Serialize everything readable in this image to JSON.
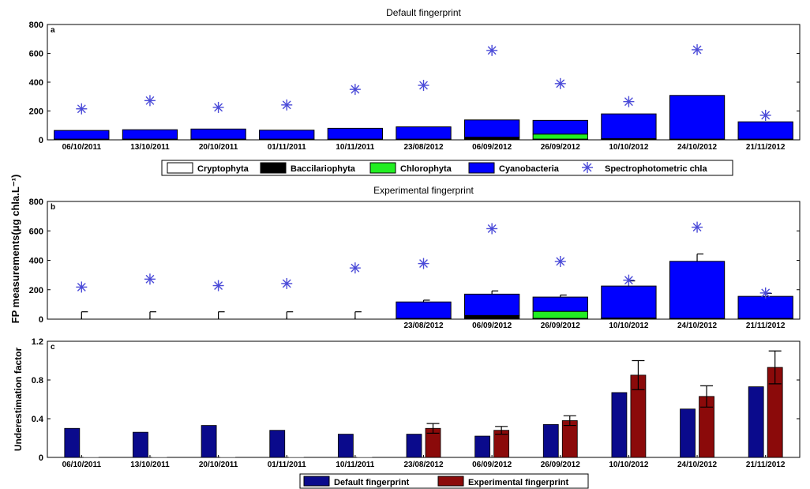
{
  "figure": {
    "shared_ylabel": "FP measurements(μg chla.L⁻¹)"
  },
  "chart_data": [
    {
      "type": "bar",
      "panel": "a",
      "title": "Default fingerprint",
      "xlabel": "",
      "ylabel": "",
      "ylim": [
        0,
        800
      ],
      "yticks": [
        "0",
        "200",
        "400",
        "600",
        "800"
      ],
      "grid": false,
      "stacked": true,
      "categories": [
        "06/10/2011",
        "13/10/2011",
        "20/10/2011",
        "01/11/2011",
        "10/11/2011",
        "23/08/2012",
        "06/09/2012",
        "26/09/2012",
        "10/10/2012",
        "24/10/2012",
        "21/11/2012"
      ],
      "series": [
        {
          "name": "Cryptophyta",
          "color": "#ffffff",
          "values": [
            0,
            0,
            0,
            0,
            0,
            0,
            0,
            0,
            0,
            0,
            0
          ]
        },
        {
          "name": "Baccilariophyta",
          "color": "#000000",
          "values": [
            5,
            5,
            5,
            5,
            5,
            5,
            18,
            5,
            8,
            5,
            5
          ]
        },
        {
          "name": "Chlorophyta",
          "color": "#22ee22",
          "values": [
            0,
            0,
            0,
            0,
            0,
            0,
            0,
            35,
            0,
            0,
            0
          ]
        },
        {
          "name": "Cyanobacteria",
          "color": "#0000ff",
          "values": [
            60,
            65,
            70,
            62,
            75,
            85,
            120,
            95,
            172,
            303,
            120
          ]
        }
      ],
      "markers": {
        "name": "Spectrophotometric chla",
        "symbol": "*",
        "color": "#4b4bd8",
        "values": [
          215,
          272,
          225,
          242,
          350,
          378,
          620,
          390,
          265,
          625,
          170
        ]
      },
      "legend": {
        "placement": "bottom",
        "entries": [
          "Cryptophyta",
          "Baccilariophyta",
          "Chlorophyta",
          "Cyanobacteria",
          "Spectrophotometric chla"
        ]
      }
    },
    {
      "type": "bar",
      "panel": "b",
      "title": "Experimental fingerprint",
      "xlabel": "",
      "ylabel": "",
      "ylim": [
        0,
        800
      ],
      "yticks": [
        "0",
        "200",
        "400",
        "600",
        "800"
      ],
      "grid": false,
      "stacked": true,
      "categories": [
        "",
        "",
        "",
        "",
        "",
        "23/08/2012",
        "06/09/2012",
        "26/09/2012",
        "10/10/2012",
        "24/10/2012",
        "21/11/2012"
      ],
      "series": [
        {
          "name": "Cryptophyta",
          "color": "#ffffff",
          "values": [
            0,
            0,
            0,
            0,
            0,
            0,
            0,
            0,
            0,
            0,
            0
          ]
        },
        {
          "name": "Baccilariophyta",
          "color": "#000000",
          "values": [
            0,
            0,
            0,
            0,
            0,
            5,
            25,
            5,
            8,
            5,
            5
          ]
        },
        {
          "name": "Chlorophyta",
          "color": "#22ee22",
          "values": [
            0,
            0,
            0,
            0,
            0,
            0,
            0,
            48,
            0,
            0,
            0
          ]
        },
        {
          "name": "Cyanobacteria",
          "color": "#0000ff",
          "values": [
            0,
            0,
            0,
            0,
            0,
            112,
            145,
            97,
            217,
            388,
            150
          ]
        }
      ],
      "error_bars": [
        50,
        50,
        50,
        50,
        50,
        12,
        22,
        14,
        35,
        50,
        20
      ],
      "markers": {
        "name": "Spectrophotometric chla",
        "symbol": "*",
        "color": "#4b4bd8",
        "values": [
          218,
          272,
          228,
          242,
          348,
          378,
          615,
          392,
          265,
          625,
          178
        ]
      }
    },
    {
      "type": "bar",
      "panel": "c",
      "title": "",
      "xlabel": "",
      "ylabel": "Underestimation factor",
      "ylim": [
        0,
        1.2
      ],
      "yticks": [
        "0",
        "0.4",
        "0.8",
        "1.2"
      ],
      "grid": false,
      "stacked": false,
      "categories": [
        "06/10/2011",
        "13/10/2011",
        "20/10/2011",
        "01/11/2011",
        "10/11/2011",
        "23/08/2012",
        "06/09/2012",
        "26/09/2012",
        "10/10/2012",
        "24/10/2012",
        "21/11/2012"
      ],
      "series": [
        {
          "name": "Default fingerprint",
          "color": "#0a0a8c",
          "values": [
            0.3,
            0.26,
            0.33,
            0.28,
            0.24,
            0.24,
            0.22,
            0.34,
            0.67,
            0.5,
            0.73
          ]
        },
        {
          "name": "Experimental fingerprint",
          "color": "#8b0a0a",
          "values": [
            0,
            0,
            0,
            0,
            0,
            0.3,
            0.28,
            0.38,
            0.85,
            0.63,
            0.93
          ]
        }
      ],
      "error_bars": [
        0,
        0,
        0,
        0,
        0,
        0.05,
        0.04,
        0.05,
        0.15,
        0.11,
        0.17
      ],
      "legend": {
        "placement": "bottom",
        "entries": [
          "Default fingerprint",
          "Experimental fingerprint"
        ]
      }
    }
  ]
}
